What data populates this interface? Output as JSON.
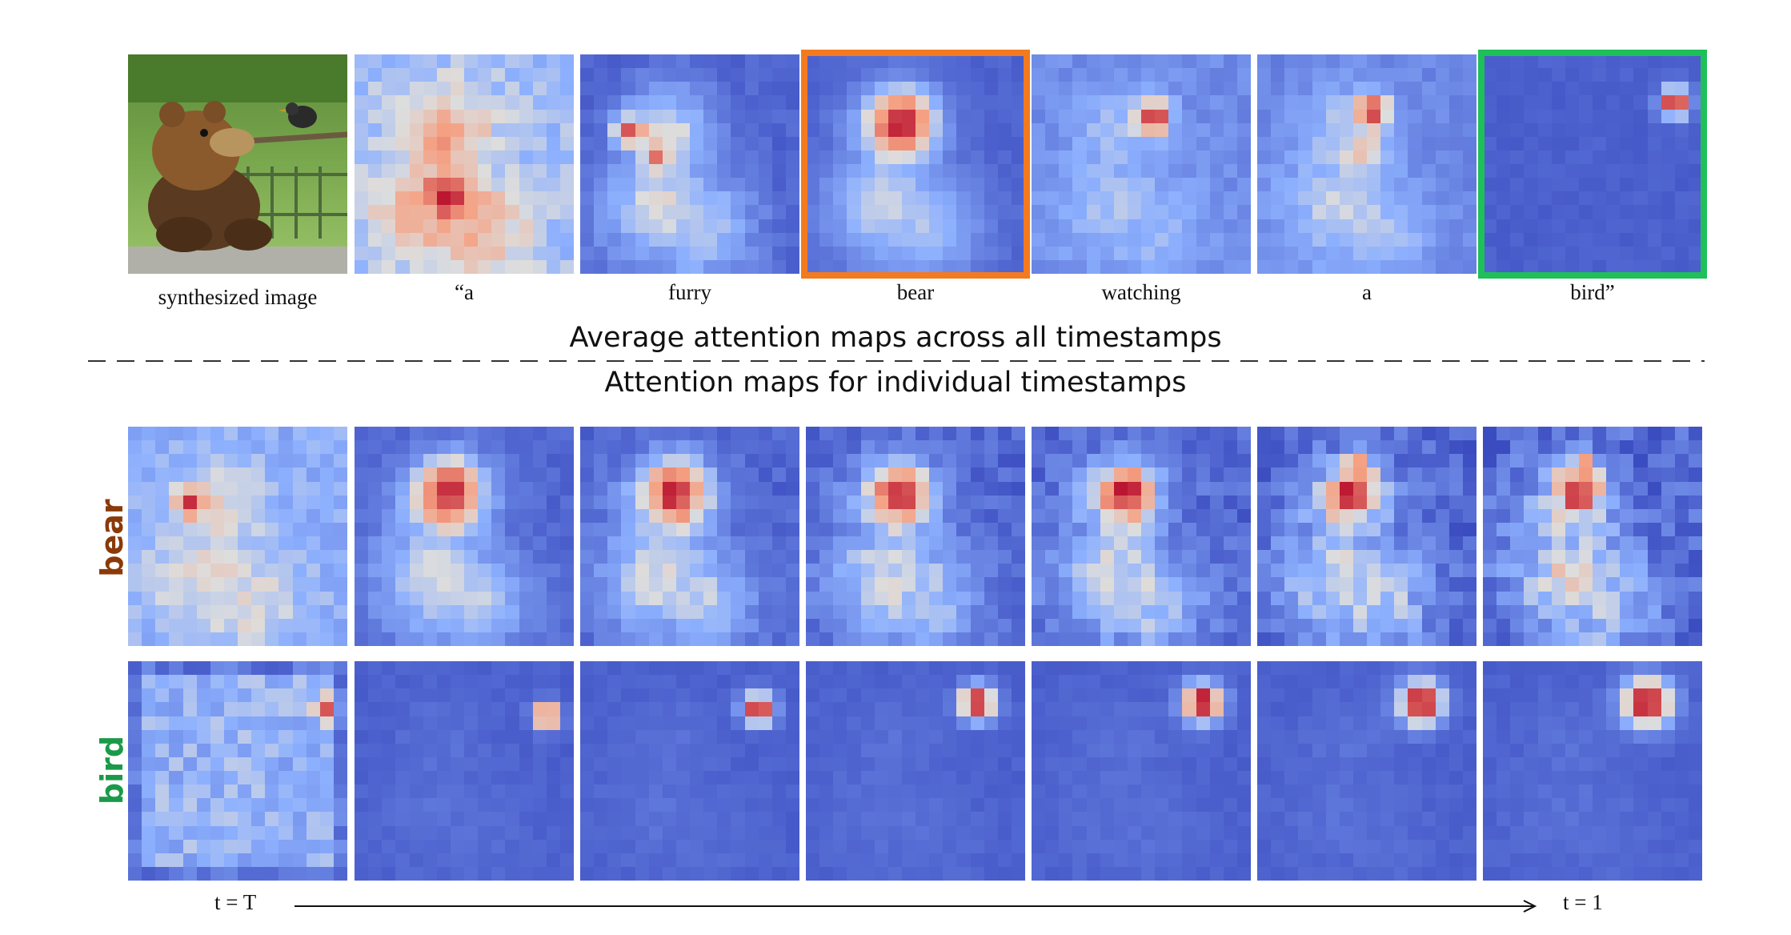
{
  "figure": {
    "top_captions": [
      "synthesized image",
      "“a",
      "furry",
      "bear",
      "watching",
      "a",
      "bird”"
    ],
    "heading_average": "Average attention maps across all timestamps",
    "heading_individual": "Attention maps for individual  timestamps",
    "row_labels": {
      "bear": "bear",
      "bird": "bird"
    },
    "time_start": "t = T",
    "time_end": "t = 1"
  },
  "colors": {
    "bear_highlight": "#f47a1f",
    "bird_highlight": "#1fbf5a",
    "bear_label": "#8a3a08",
    "bird_label": "#1a9a48",
    "low_attention": "#3b4cc0",
    "high_attention": "#b40426"
  },
  "icons": {
    "bear": "bear-photo",
    "arrow": "arrow-right-icon"
  }
}
